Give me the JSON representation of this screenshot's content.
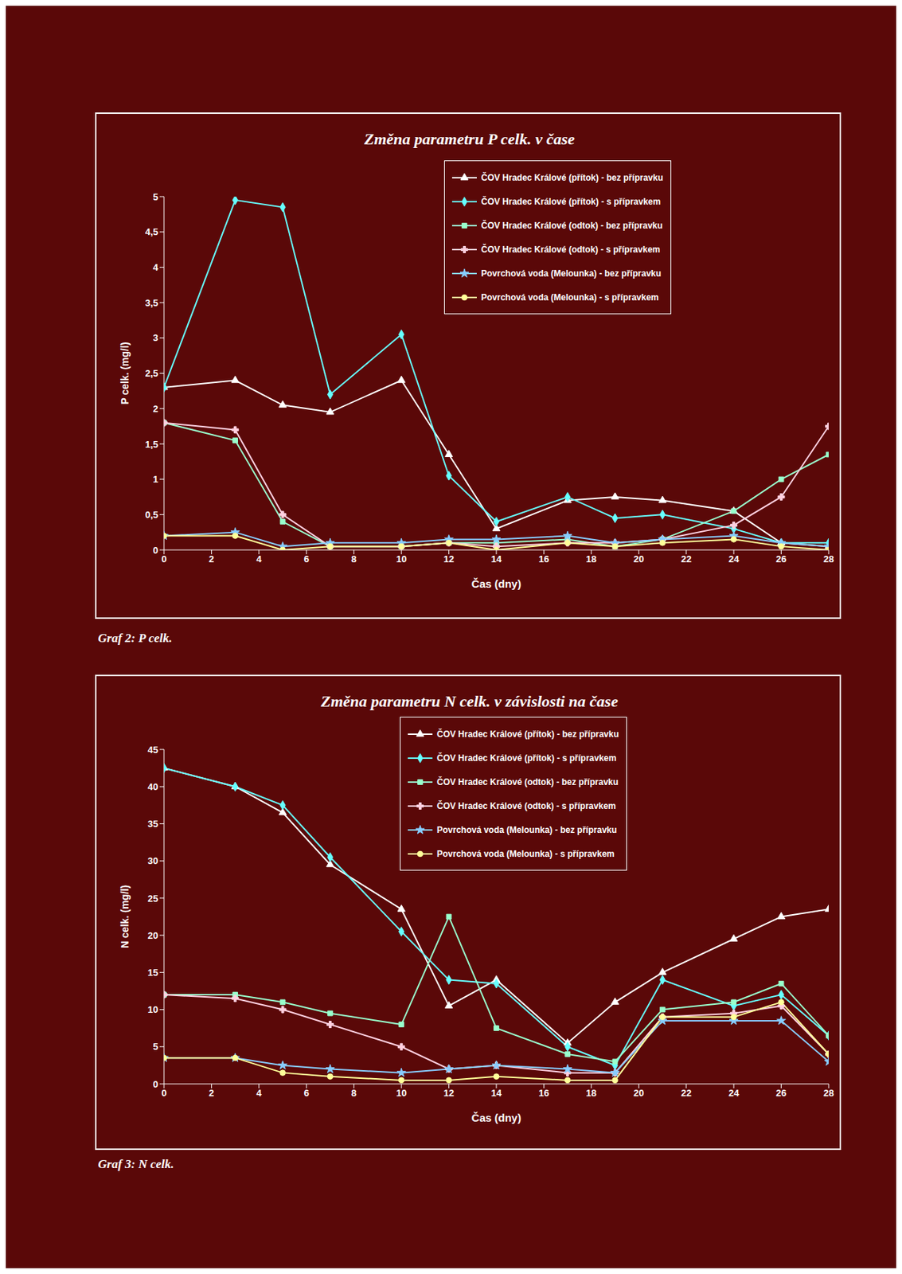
{
  "chart_data": [
    {
      "type": "line",
      "title": "Změna parametru P celk. v čase",
      "caption": "Graf 2: P celk.",
      "x_label": "Čas (dny)",
      "y_label": "P celk. (mg/l)",
      "x": [
        0,
        3,
        5,
        7,
        10,
        12,
        14,
        17,
        19,
        21,
        24,
        26,
        28
      ],
      "xlim": [
        0,
        28
      ],
      "xticks": [
        0,
        2,
        4,
        6,
        8,
        10,
        12,
        14,
        16,
        18,
        20,
        22,
        24,
        26,
        28
      ],
      "ylim": [
        0,
        5
      ],
      "yticks": [
        0,
        {
          "value": 0.5,
          "label": "0,5"
        },
        1,
        {
          "value": 1.5,
          "label": "1,5"
        },
        2,
        {
          "value": 2.5,
          "label": "2,5"
        },
        3,
        {
          "value": 3.5,
          "label": "3,5"
        },
        4,
        {
          "value": 4.5,
          "label": "4,5"
        },
        5
      ],
      "grid": false,
      "legend": "top-right",
      "series": [
        {
          "name": "ČOV Hradec Králové (přítok) - bez přípravku",
          "color": "#ffffff",
          "marker": "triangle",
          "values": [
            2.3,
            2.4,
            2.05,
            1.95,
            2.4,
            1.35,
            0.3,
            0.7,
            0.75,
            0.7,
            0.55,
            0.1,
            0.05
          ]
        },
        {
          "name": "ČOV Hradec Králové (přítok) - s přípravkem",
          "color": "#66ffff",
          "marker": "diamond",
          "values": [
            2.3,
            4.95,
            4.85,
            2.2,
            3.05,
            1.05,
            0.4,
            0.75,
            0.45,
            0.5,
            0.3,
            0.1,
            0.1
          ]
        },
        {
          "name": "ČOV Hradec Králové (odtok) - bez přípravku",
          "color": "#99ffcc",
          "marker": "square",
          "values": [
            1.8,
            1.55,
            0.4,
            0.05,
            0.05,
            0.1,
            0.1,
            0.15,
            0.05,
            0.15,
            0.55,
            1.0,
            1.35
          ]
        },
        {
          "name": "ČOV Hradec Králové (odtok) - s přípravkem",
          "color": "#ffd0e0",
          "marker": "cross",
          "values": [
            1.8,
            1.7,
            0.5,
            0.05,
            0.05,
            0.1,
            0.05,
            0.1,
            0.1,
            0.15,
            0.35,
            0.75,
            1.75
          ]
        },
        {
          "name": "Povrchová voda (Melounka) - bez přípravku",
          "color": "#88ccff",
          "marker": "star",
          "values": [
            0.2,
            0.25,
            0.05,
            0.1,
            0.1,
            0.15,
            0.15,
            0.2,
            0.1,
            0.15,
            0.2,
            0.1,
            0.05
          ]
        },
        {
          "name": "Povrchová voda (Melounka) - s přípravkem",
          "color": "#ffff99",
          "marker": "circle",
          "values": [
            0.2,
            0.2,
            0.0,
            0.05,
            0.05,
            0.1,
            0.0,
            0.1,
            0.05,
            0.1,
            0.15,
            0.05,
            0.0
          ]
        }
      ]
    },
    {
      "type": "line",
      "title": "Změna parametru N celk. v závislosti na čase",
      "caption": "Graf 3: N celk.",
      "x_label": "Čas (dny)",
      "y_label": "N celk. (mg/l)",
      "x": [
        0,
        3,
        5,
        7,
        10,
        12,
        14,
        17,
        19,
        21,
        24,
        26,
        28
      ],
      "xlim": [
        0,
        28
      ],
      "xticks": [
        0,
        2,
        4,
        6,
        8,
        10,
        12,
        14,
        16,
        18,
        20,
        22,
        24,
        26,
        28
      ],
      "ylim": [
        0,
        45
      ],
      "yticks": [
        0,
        5,
        10,
        15,
        20,
        25,
        30,
        35,
        40,
        45
      ],
      "grid": false,
      "legend": "top-right",
      "series": [
        {
          "name": "ČOV Hradec Králové (přítok) - bez přípravku",
          "color": "#ffffff",
          "marker": "triangle",
          "values": [
            42.5,
            40,
            36.5,
            29.5,
            23.5,
            10.5,
            14,
            5.5,
            11,
            15,
            19.5,
            22.5,
            23.5
          ]
        },
        {
          "name": "ČOV Hradec Králové (přítok) - s přípravkem",
          "color": "#66ffff",
          "marker": "diamond",
          "values": [
            42.5,
            40,
            37.5,
            30.5,
            20.5,
            14,
            13.5,
            5,
            2.5,
            14,
            10.5,
            12,
            6.5
          ]
        },
        {
          "name": "ČOV Hradec Králové (odtok) - bez přípravku",
          "color": "#99ffcc",
          "marker": "square",
          "values": [
            12,
            12,
            11,
            9.5,
            8,
            22.5,
            7.5,
            4,
            3,
            10,
            11,
            13.5,
            6.5
          ]
        },
        {
          "name": "ČOV Hradec Králové (odtok) - s přípravkem",
          "color": "#ffd0e0",
          "marker": "cross",
          "values": [
            12,
            11.5,
            10,
            8,
            5,
            2,
            2.5,
            1.5,
            1.5,
            9,
            9.5,
            10.5,
            4
          ]
        },
        {
          "name": "Povrchová voda (Melounka) - bez přípravku",
          "color": "#88ccff",
          "marker": "star",
          "values": [
            3.5,
            3.5,
            2.5,
            2,
            1.5,
            2,
            2.5,
            2,
            1.5,
            8.5,
            8.5,
            8.5,
            3
          ]
        },
        {
          "name": "Povrchová voda (Melounka) - s přípravkem",
          "color": "#ffff99",
          "marker": "circle",
          "values": [
            3.5,
            3.5,
            1.5,
            1,
            0.5,
            0.5,
            1,
            0.5,
            0.5,
            9,
            9,
            11,
            4
          ]
        }
      ]
    }
  ]
}
